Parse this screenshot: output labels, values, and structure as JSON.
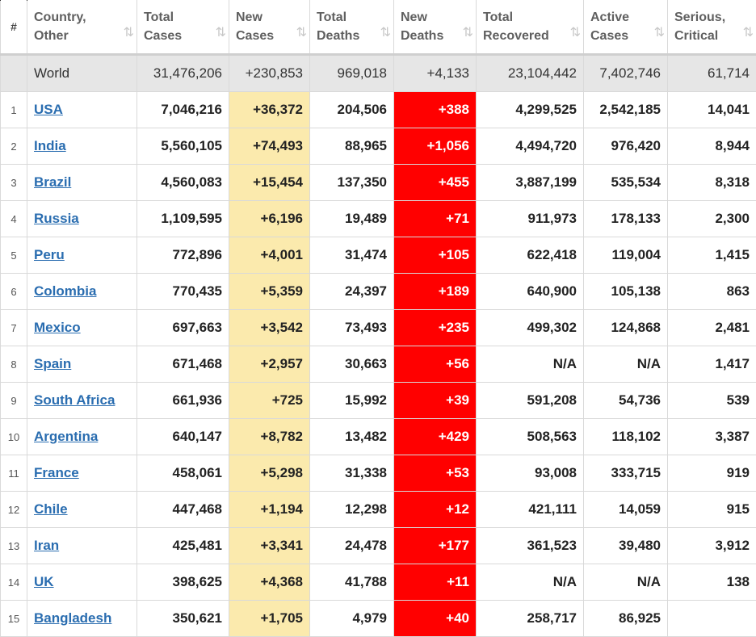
{
  "headers": {
    "num": "#",
    "country": "Country,\nOther",
    "total_cases": "Total\nCases",
    "new_cases": "New\nCases",
    "total_deaths": "Total\nDeaths",
    "new_deaths": "New\nDeaths",
    "total_recovered": "Total\nRecovered",
    "active_cases": "Active\nCases",
    "serious_critical": "Serious,\nCritical"
  },
  "sort_icon": "⇅",
  "sort_active_icon": "⇅",
  "world": {
    "country": "World",
    "total_cases": "31,476,206",
    "new_cases": "+230,853",
    "total_deaths": "969,018",
    "new_deaths": "+4,133",
    "total_recovered": "23,104,442",
    "active_cases": "7,402,746",
    "serious_critical": "61,714"
  },
  "rows": [
    {
      "num": "1",
      "country": "USA",
      "total_cases": "7,046,216",
      "new_cases": "+36,372",
      "total_deaths": "204,506",
      "new_deaths": "+388",
      "total_recovered": "4,299,525",
      "active_cases": "2,542,185",
      "serious_critical": "14,041"
    },
    {
      "num": "2",
      "country": "India",
      "total_cases": "5,560,105",
      "new_cases": "+74,493",
      "total_deaths": "88,965",
      "new_deaths": "+1,056",
      "total_recovered": "4,494,720",
      "active_cases": "976,420",
      "serious_critical": "8,944"
    },
    {
      "num": "3",
      "country": "Brazil",
      "total_cases": "4,560,083",
      "new_cases": "+15,454",
      "total_deaths": "137,350",
      "new_deaths": "+455",
      "total_recovered": "3,887,199",
      "active_cases": "535,534",
      "serious_critical": "8,318"
    },
    {
      "num": "4",
      "country": "Russia",
      "total_cases": "1,109,595",
      "new_cases": "+6,196",
      "total_deaths": "19,489",
      "new_deaths": "+71",
      "total_recovered": "911,973",
      "active_cases": "178,133",
      "serious_critical": "2,300"
    },
    {
      "num": "5",
      "country": "Peru",
      "total_cases": "772,896",
      "new_cases": "+4,001",
      "total_deaths": "31,474",
      "new_deaths": "+105",
      "total_recovered": "622,418",
      "active_cases": "119,004",
      "serious_critical": "1,415"
    },
    {
      "num": "6",
      "country": "Colombia",
      "total_cases": "770,435",
      "new_cases": "+5,359",
      "total_deaths": "24,397",
      "new_deaths": "+189",
      "total_recovered": "640,900",
      "active_cases": "105,138",
      "serious_critical": "863"
    },
    {
      "num": "7",
      "country": "Mexico",
      "total_cases": "697,663",
      "new_cases": "+3,542",
      "total_deaths": "73,493",
      "new_deaths": "+235",
      "total_recovered": "499,302",
      "active_cases": "124,868",
      "serious_critical": "2,481"
    },
    {
      "num": "8",
      "country": "Spain",
      "total_cases": "671,468",
      "new_cases": "+2,957",
      "total_deaths": "30,663",
      "new_deaths": "+56",
      "total_recovered": "N/A",
      "active_cases": "N/A",
      "serious_critical": "1,417"
    },
    {
      "num": "9",
      "country": "South Africa",
      "total_cases": "661,936",
      "new_cases": "+725",
      "total_deaths": "15,992",
      "new_deaths": "+39",
      "total_recovered": "591,208",
      "active_cases": "54,736",
      "serious_critical": "539"
    },
    {
      "num": "10",
      "country": "Argentina",
      "total_cases": "640,147",
      "new_cases": "+8,782",
      "total_deaths": "13,482",
      "new_deaths": "+429",
      "total_recovered": "508,563",
      "active_cases": "118,102",
      "serious_critical": "3,387"
    },
    {
      "num": "11",
      "country": "France",
      "total_cases": "458,061",
      "new_cases": "+5,298",
      "total_deaths": "31,338",
      "new_deaths": "+53",
      "total_recovered": "93,008",
      "active_cases": "333,715",
      "serious_critical": "919"
    },
    {
      "num": "12",
      "country": "Chile",
      "total_cases": "447,468",
      "new_cases": "+1,194",
      "total_deaths": "12,298",
      "new_deaths": "+12",
      "total_recovered": "421,111",
      "active_cases": "14,059",
      "serious_critical": "915"
    },
    {
      "num": "13",
      "country": "Iran",
      "total_cases": "425,481",
      "new_cases": "+3,341",
      "total_deaths": "24,478",
      "new_deaths": "+177",
      "total_recovered": "361,523",
      "active_cases": "39,480",
      "serious_critical": "3,912"
    },
    {
      "num": "14",
      "country": "UK",
      "total_cases": "398,625",
      "new_cases": "+4,368",
      "total_deaths": "41,788",
      "new_deaths": "+11",
      "total_recovered": "N/A",
      "active_cases": "N/A",
      "serious_critical": "138"
    },
    {
      "num": "15",
      "country": "Bangladesh",
      "total_cases": "350,621",
      "new_cases": "+1,705",
      "total_deaths": "4,979",
      "new_deaths": "+40",
      "total_recovered": "258,717",
      "active_cases": "86,925",
      "serious_critical": ""
    }
  ]
}
